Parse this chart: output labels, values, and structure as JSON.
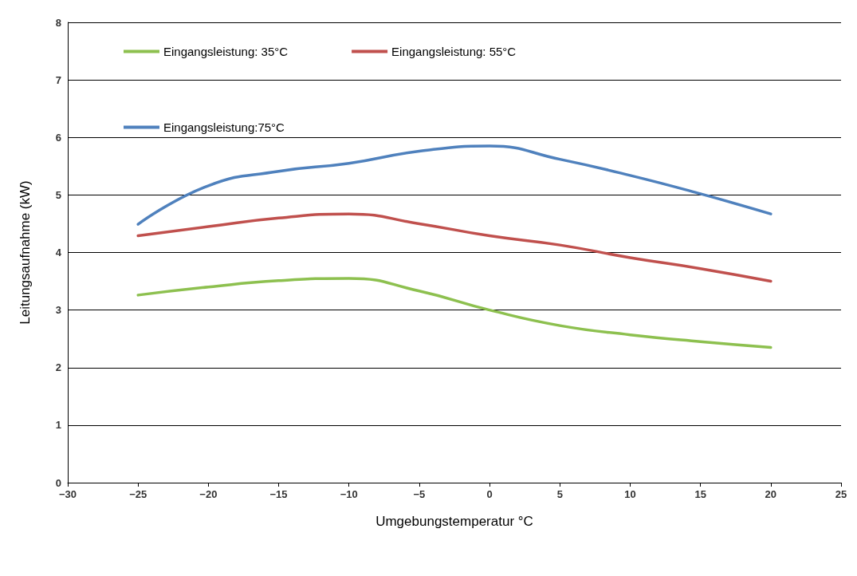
{
  "chart_data": {
    "type": "line",
    "xlabel": "Umgebungstemperatur °C",
    "ylabel": "Leitungsaufnahme (kW)",
    "x": [
      -25,
      -20,
      -15,
      -10,
      -5,
      0,
      5,
      10,
      15,
      20
    ],
    "series": [
      {
        "name": "Eingangsleistung: 35°C",
        "color": "#8dc04f",
        "values": [
          3.26,
          3.4,
          3.51,
          3.55,
          3.33,
          3.0,
          2.73,
          2.57,
          2.45,
          2.35
        ]
      },
      {
        "name": "Eingangsleistung: 55°C",
        "color": "#c0504d",
        "values": [
          4.29,
          4.45,
          4.6,
          4.67,
          4.5,
          4.29,
          4.13,
          3.91,
          3.72,
          3.5
        ]
      },
      {
        "name": "Eingangsleistung:75°C",
        "color": "#4f81bd",
        "values": [
          4.49,
          5.16,
          5.41,
          5.55,
          5.76,
          5.85,
          5.62,
          5.34,
          5.02,
          4.67
        ]
      }
    ],
    "xlim": [
      -30,
      25
    ],
    "xticks": [
      {
        "value": -30,
        "label": "−30"
      },
      {
        "value": -25,
        "label": "−25"
      },
      {
        "value": -20,
        "label": "−20"
      },
      {
        "value": -15,
        "label": "−15"
      },
      {
        "value": -10,
        "label": "−10"
      },
      {
        "value": -5,
        "label": "−5"
      },
      0,
      5,
      10,
      15,
      20,
      25
    ],
    "ylim": [
      0,
      8
    ],
    "yticks": [
      0,
      1,
      2,
      3,
      4,
      5,
      6,
      7,
      8
    ],
    "grid": "y",
    "legend": "top left",
    "marker": "none",
    "line_style": "solid"
  }
}
